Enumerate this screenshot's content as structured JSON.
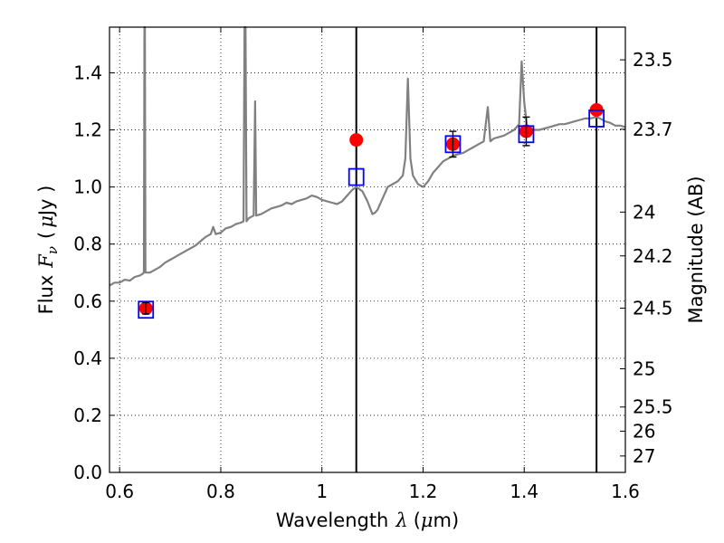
{
  "chart_data": {
    "type": "scatter",
    "xlabel": "Wavelength",
    "xlabel_symbol": "λ",
    "xlabel_unit_prefix": "(",
    "xlabel_unit_mu": "μ",
    "xlabel_unit_suffix": "m)",
    "ylabel": "Flux",
    "ylabel_symbol": "F",
    "ylabel_subscript": "ν",
    "ylabel_unit_prefix": "(",
    "ylabel_unit_mu": "μ",
    "ylabel_unit_suffix": "Jy )",
    "y2label": "Magnitude (AB)",
    "xlim": [
      0.58,
      1.6
    ],
    "ylim": [
      0.0,
      1.56
    ],
    "grid": true,
    "xticks": [
      0.6,
      0.8,
      1.0,
      1.2,
      1.4,
      1.6
    ],
    "xtick_labels": [
      "0.6",
      "0.8",
      "1",
      "1.2",
      "1.4",
      "1.6"
    ],
    "yticks": [
      0.0,
      0.2,
      0.4,
      0.6,
      0.8,
      1.0,
      1.2,
      1.4
    ],
    "ytick_labels": [
      "0.0",
      "0.2",
      "0.4",
      "0.6",
      "0.8",
      "1.0",
      "1.2",
      "1.4"
    ],
    "y2ticks": [
      {
        "label": "23.5",
        "mag": 23.5
      },
      {
        "label": "23.7",
        "mag": 23.7
      },
      {
        "label": "24",
        "mag": 24.0
      },
      {
        "label": "24.2",
        "mag": 24.2
      },
      {
        "label": "24.5",
        "mag": 24.5
      },
      {
        "label": "25",
        "mag": 25.0
      },
      {
        "label": "25.5",
        "mag": 25.5
      },
      {
        "label": "26",
        "mag": 26.0
      },
      {
        "label": "27",
        "mag": 27.0
      }
    ],
    "vertical_lines": [
      1.068,
      1.543
    ],
    "series": [
      {
        "kind": "spectrum",
        "color": "#808080",
        "points": [
          [
            0.58,
            0.655
          ],
          [
            0.59,
            0.665
          ],
          [
            0.6,
            0.665
          ],
          [
            0.61,
            0.675
          ],
          [
            0.62,
            0.672
          ],
          [
            0.63,
            0.685
          ],
          [
            0.64,
            0.69
          ],
          [
            0.645,
            0.695
          ],
          [
            0.648,
            0.7
          ],
          [
            0.649,
            1.56
          ],
          [
            0.65,
            1.56
          ],
          [
            0.651,
            0.7
          ],
          [
            0.655,
            0.7
          ],
          [
            0.66,
            0.7
          ],
          [
            0.67,
            0.71
          ],
          [
            0.68,
            0.72
          ],
          [
            0.69,
            0.735
          ],
          [
            0.7,
            0.745
          ],
          [
            0.71,
            0.755
          ],
          [
            0.72,
            0.765
          ],
          [
            0.73,
            0.775
          ],
          [
            0.74,
            0.785
          ],
          [
            0.75,
            0.795
          ],
          [
            0.76,
            0.81
          ],
          [
            0.77,
            0.825
          ],
          [
            0.78,
            0.835
          ],
          [
            0.785,
            0.86
          ],
          [
            0.79,
            0.835
          ],
          [
            0.8,
            0.84
          ],
          [
            0.81,
            0.855
          ],
          [
            0.82,
            0.86
          ],
          [
            0.83,
            0.87
          ],
          [
            0.84,
            0.875
          ],
          [
            0.845,
            0.88
          ],
          [
            0.847,
            1.56
          ],
          [
            0.849,
            1.56
          ],
          [
            0.851,
            0.88
          ],
          [
            0.855,
            0.89
          ],
          [
            0.86,
            0.895
          ],
          [
            0.865,
            0.9
          ],
          [
            0.868,
            1.3
          ],
          [
            0.87,
            0.9
          ],
          [
            0.88,
            0.905
          ],
          [
            0.89,
            0.915
          ],
          [
            0.9,
            0.925
          ],
          [
            0.91,
            0.93
          ],
          [
            0.92,
            0.935
          ],
          [
            0.93,
            0.945
          ],
          [
            0.94,
            0.94
          ],
          [
            0.95,
            0.95
          ],
          [
            0.96,
            0.955
          ],
          [
            0.97,
            0.96
          ],
          [
            0.98,
            0.97
          ],
          [
            0.99,
            0.965
          ],
          [
            1.0,
            0.955
          ],
          [
            1.01,
            0.95
          ],
          [
            1.02,
            0.945
          ],
          [
            1.03,
            0.94
          ],
          [
            1.04,
            0.95
          ],
          [
            1.05,
            0.97
          ],
          [
            1.06,
            0.99
          ],
          [
            1.068,
            1.0
          ],
          [
            1.08,
            0.985
          ],
          [
            1.09,
            0.95
          ],
          [
            1.1,
            0.905
          ],
          [
            1.105,
            0.91
          ],
          [
            1.11,
            0.92
          ],
          [
            1.12,
            0.96
          ],
          [
            1.13,
            1.0
          ],
          [
            1.14,
            1.01
          ],
          [
            1.15,
            1.02
          ],
          [
            1.16,
            1.04
          ],
          [
            1.165,
            1.1
          ],
          [
            1.17,
            1.38
          ],
          [
            1.175,
            1.1
          ],
          [
            1.18,
            1.04
          ],
          [
            1.19,
            1.01
          ],
          [
            1.2,
            1.0
          ],
          [
            1.21,
            1.02
          ],
          [
            1.22,
            1.05
          ],
          [
            1.23,
            1.07
          ],
          [
            1.24,
            1.09
          ],
          [
            1.25,
            1.1
          ],
          [
            1.26,
            1.11
          ],
          [
            1.27,
            1.115
          ],
          [
            1.28,
            1.12
          ],
          [
            1.29,
            1.13
          ],
          [
            1.3,
            1.14
          ],
          [
            1.31,
            1.15
          ],
          [
            1.32,
            1.16
          ],
          [
            1.328,
            1.28
          ],
          [
            1.333,
            1.16
          ],
          [
            1.34,
            1.17
          ],
          [
            1.35,
            1.175
          ],
          [
            1.36,
            1.18
          ],
          [
            1.37,
            1.19
          ],
          [
            1.38,
            1.2
          ],
          [
            1.39,
            1.22
          ],
          [
            1.395,
            1.44
          ],
          [
            1.4,
            1.3
          ],
          [
            1.405,
            1.22
          ],
          [
            1.41,
            1.2
          ],
          [
            1.42,
            1.2
          ],
          [
            1.43,
            1.2
          ],
          [
            1.44,
            1.205
          ],
          [
            1.45,
            1.21
          ],
          [
            1.46,
            1.215
          ],
          [
            1.47,
            1.22
          ],
          [
            1.48,
            1.22
          ],
          [
            1.49,
            1.225
          ],
          [
            1.5,
            1.23
          ],
          [
            1.51,
            1.235
          ],
          [
            1.52,
            1.24
          ],
          [
            1.53,
            1.24
          ],
          [
            1.543,
            1.245
          ],
          [
            1.55,
            1.24
          ],
          [
            1.56,
            1.23
          ],
          [
            1.57,
            1.225
          ],
          [
            1.58,
            1.215
          ],
          [
            1.59,
            1.215
          ],
          [
            1.6,
            1.21
          ]
        ]
      },
      {
        "kind": "observed",
        "color": "#ff0000",
        "points": [
          {
            "x": 0.652,
            "y": 0.575,
            "err": 0.02
          },
          {
            "x": 1.068,
            "y": 1.165,
            "err": 0.0
          },
          {
            "x": 1.259,
            "y": 1.15,
            "err": 0.045
          },
          {
            "x": 1.404,
            "y": 1.195,
            "err": 0.05
          },
          {
            "x": 1.543,
            "y": 1.27,
            "err": 0.0
          }
        ]
      },
      {
        "kind": "model",
        "color": "#0000ff",
        "points": [
          {
            "x": 0.652,
            "y": 0.57
          },
          {
            "x": 1.068,
            "y": 1.035
          },
          {
            "x": 1.259,
            "y": 1.15
          },
          {
            "x": 1.404,
            "y": 1.185
          },
          {
            "x": 1.543,
            "y": 1.24
          }
        ]
      }
    ]
  }
}
